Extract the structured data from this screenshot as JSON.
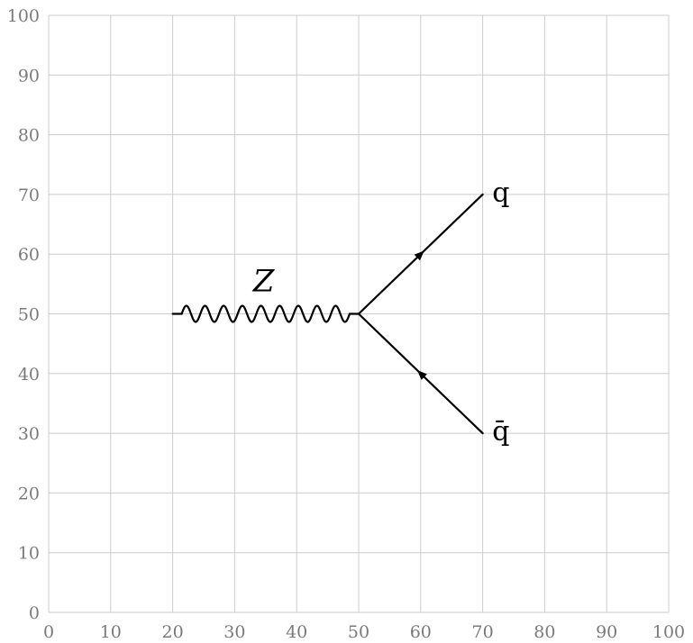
{
  "diagram": {
    "x_range": [
      0,
      100
    ],
    "y_range": [
      0,
      100
    ],
    "tick_step": 10,
    "grid": true,
    "boson": {
      "from": [
        20,
        50
      ],
      "to": [
        50,
        50
      ],
      "style": "wavy",
      "label": "Z",
      "label_pos": [
        35,
        55
      ]
    },
    "fermions": [
      {
        "name": "quark",
        "from": [
          50,
          50
        ],
        "to": [
          70,
          70
        ],
        "arrow_dir": "forward",
        "label": "q",
        "label_pos": [
          73,
          70
        ]
      },
      {
        "name": "antiquark",
        "from": [
          70,
          30
        ],
        "to": [
          50,
          50
        ],
        "arrow_dir": "forward",
        "label": "q̄",
        "label_pos": [
          73,
          30
        ]
      }
    ],
    "vertex": [
      50,
      50
    ]
  }
}
